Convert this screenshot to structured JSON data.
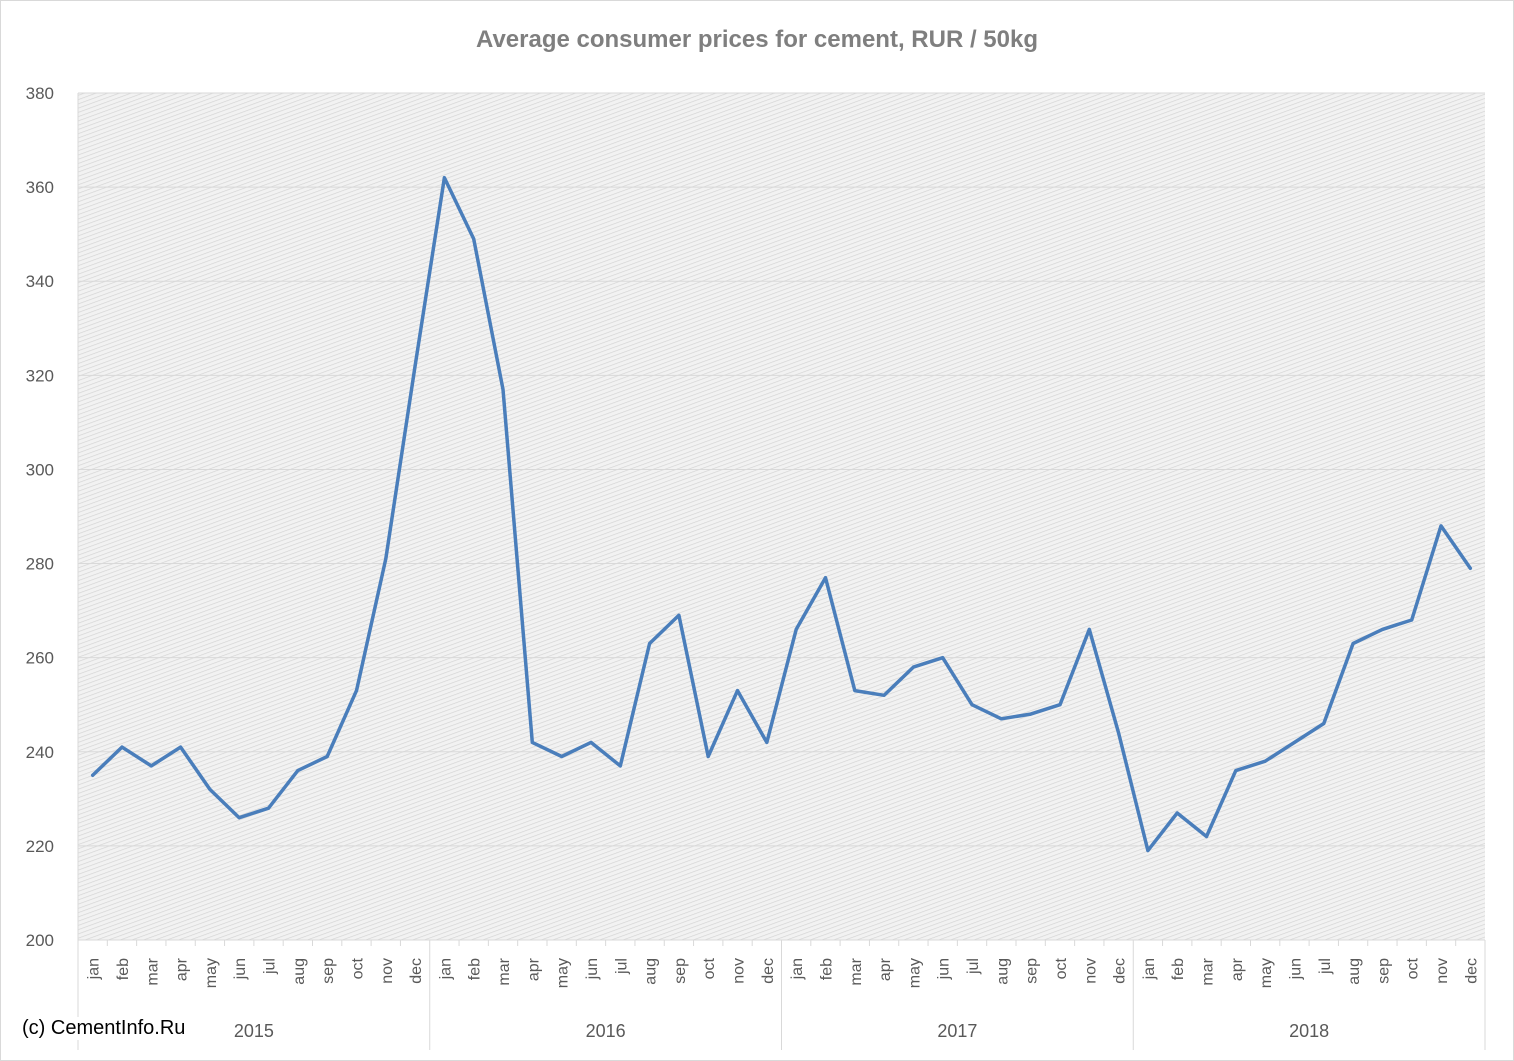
{
  "chart_data": {
    "type": "line",
    "title": "Average consumer prices for cement, RUR / 50kg",
    "ylim": [
      200,
      380
    ],
    "yticks": [
      200,
      220,
      240,
      260,
      280,
      300,
      320,
      340,
      360,
      380
    ],
    "grid": true,
    "years": [
      "2015",
      "2016",
      "2017",
      "2018"
    ],
    "months": [
      "jan",
      "feb",
      "mar",
      "apr",
      "may",
      "jun",
      "jul",
      "aug",
      "sep",
      "oct",
      "nov",
      "dec"
    ],
    "series": [
      {
        "color": "#4a7ebb",
        "values": [
          235,
          241,
          237,
          241,
          232,
          226,
          228,
          236,
          239,
          253,
          281,
          322,
          362,
          349,
          317,
          242,
          239,
          242,
          237,
          263,
          269,
          239,
          253,
          242,
          266,
          277,
          253,
          252,
          258,
          260,
          250,
          247,
          248,
          250,
          266,
          244,
          219,
          227,
          222,
          236,
          238,
          242,
          246,
          263,
          266,
          268,
          288,
          279
        ]
      }
    ]
  },
  "footer": {
    "copyright": "(c) CementInfo.Ru"
  }
}
